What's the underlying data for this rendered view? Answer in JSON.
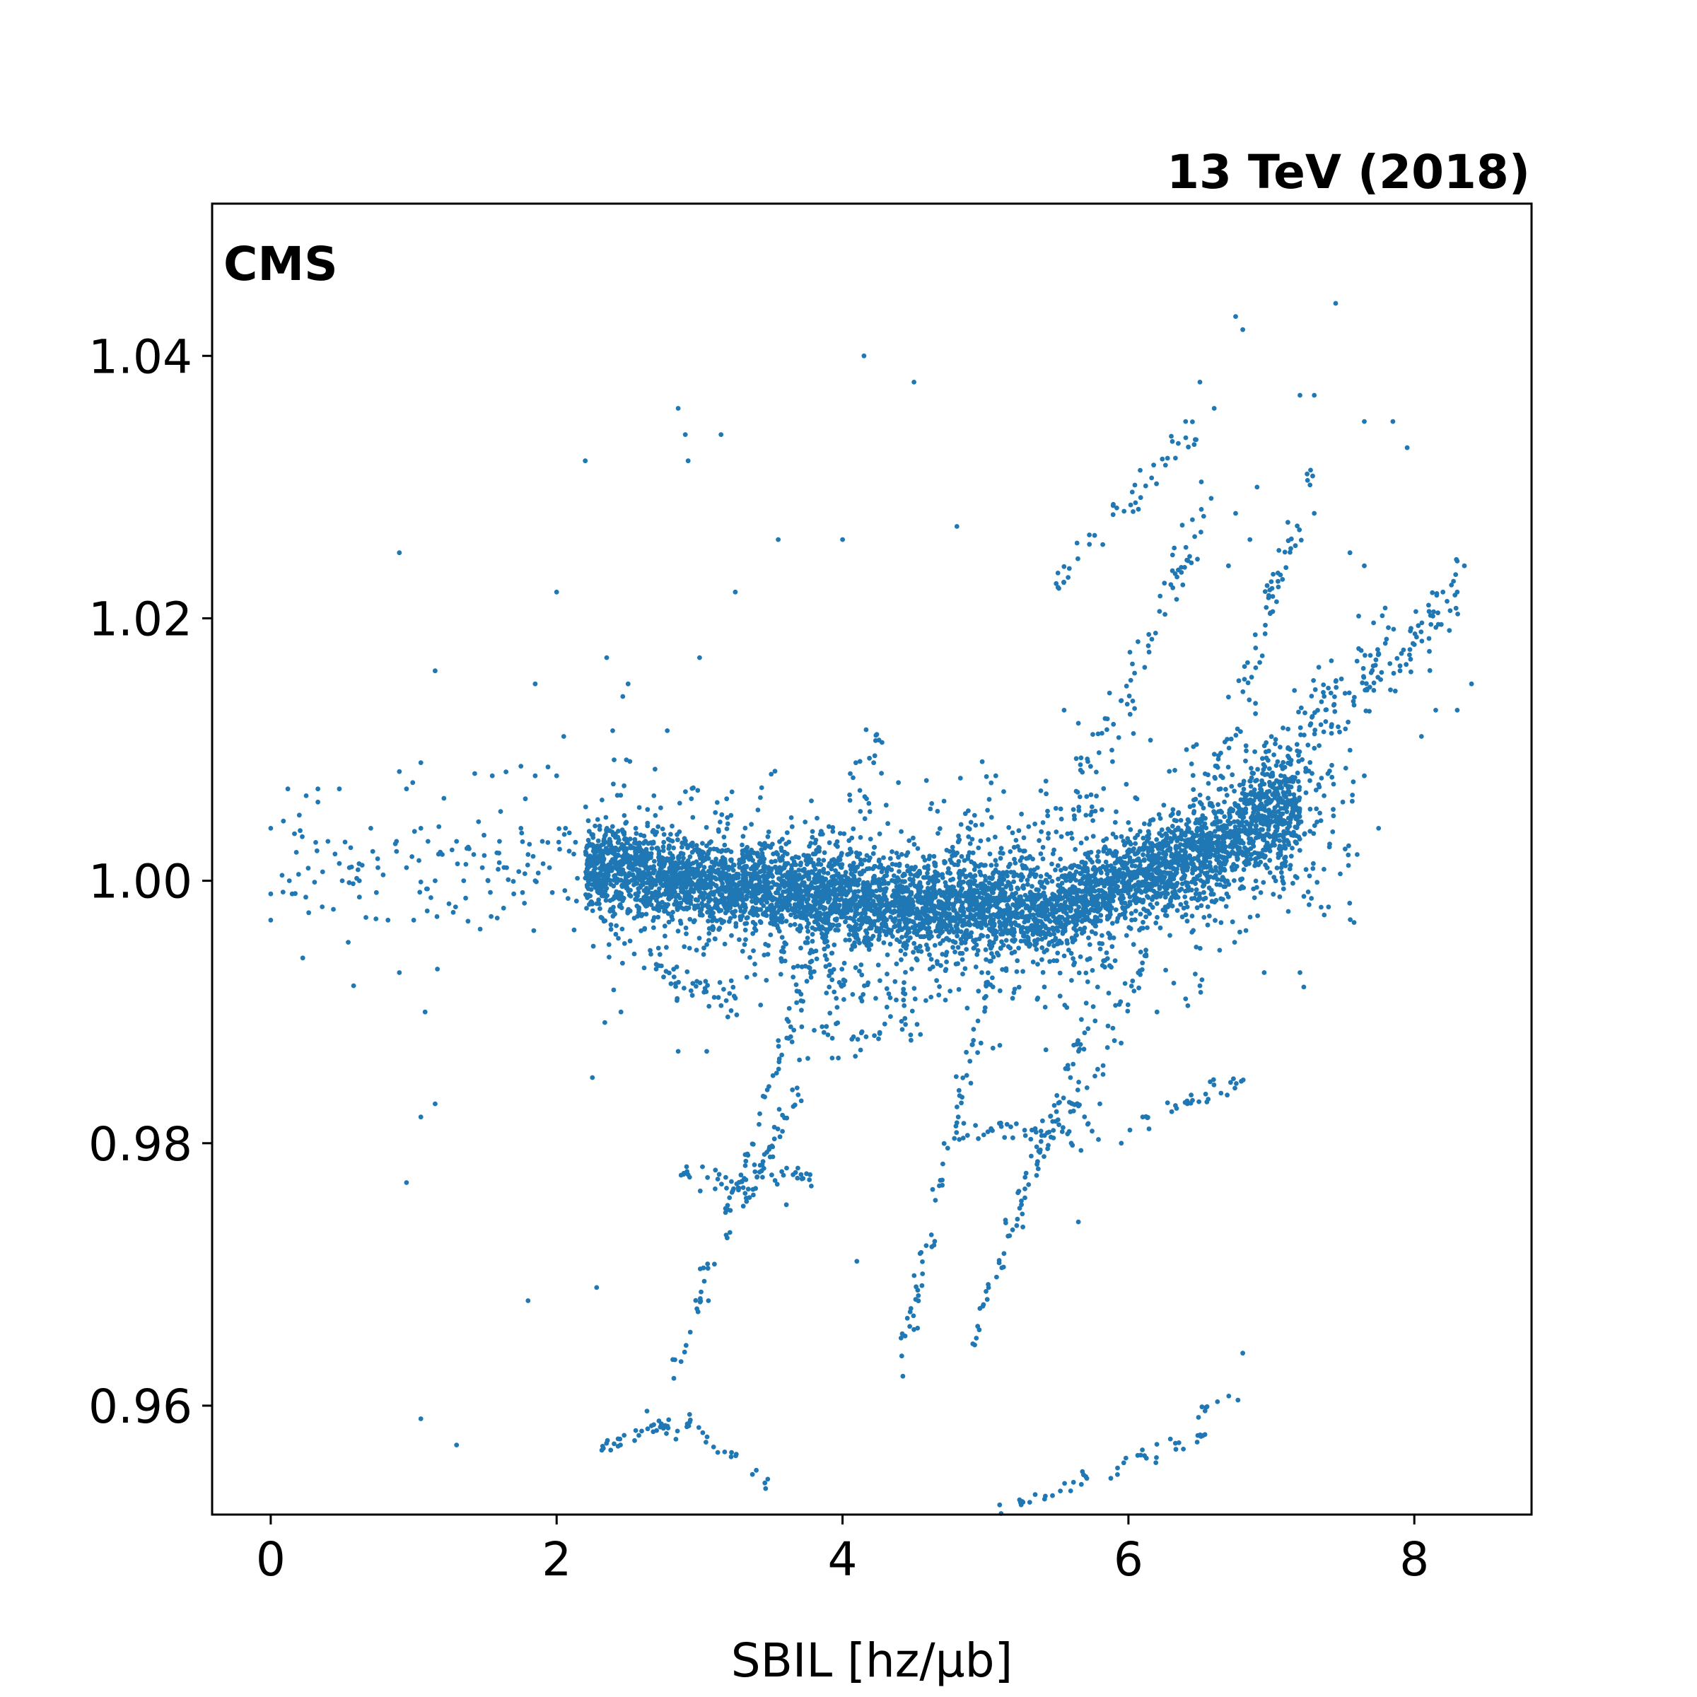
{
  "chart_data": {
    "type": "scatter",
    "title": "13 TeV (2018)",
    "corner_label": "CMS",
    "xlabel": "SBIL [hz/μb]",
    "ylabel": "",
    "xlim": [
      -0.41,
      8.82
    ],
    "ylim": [
      0.9517,
      1.0516
    ],
    "x_ticks": [
      {
        "value": 0,
        "label": "0"
      },
      {
        "value": 2,
        "label": "2"
      },
      {
        "value": 4,
        "label": "4"
      },
      {
        "value": 6,
        "label": "6"
      },
      {
        "value": 8,
        "label": "8"
      }
    ],
    "y_ticks": [
      {
        "value": 0.96,
        "label": "0.96"
      },
      {
        "value": 0.98,
        "label": "0.98"
      },
      {
        "value": 1.0,
        "label": "1.00"
      },
      {
        "value": 1.02,
        "label": "1.02"
      },
      {
        "value": 1.04,
        "label": "1.04"
      }
    ],
    "grid": false,
    "marker_color": "#1f77b4",
    "band": {
      "x_range": [
        2.2,
        7.2
      ],
      "center_at_x": [
        [
          2.2,
          1.001
        ],
        [
          3.0,
          1.0
        ],
        [
          4.3,
          0.998
        ],
        [
          5.5,
          0.998
        ],
        [
          6.5,
          1.002
        ],
        [
          7.0,
          1.005
        ]
      ],
      "scatter_sd": 0.0017
    },
    "series": [
      {
        "values": [
          [
            0.0,
            1.004
          ],
          [
            0.0,
            0.999
          ],
          [
            0.0,
            0.997
          ],
          [
            0.12,
            1.007
          ],
          [
            0.13,
            1.0
          ],
          [
            0.15,
            0.999
          ],
          [
            0.2,
            1.005
          ],
          [
            0.33,
            1.007
          ],
          [
            0.33,
            1.006
          ],
          [
            0.4,
            1.003
          ],
          [
            0.48,
            1.007
          ],
          [
            0.5,
            1.0
          ],
          [
            0.55,
            1.001
          ],
          [
            0.58,
            0.992
          ],
          [
            0.62,
            1.0
          ],
          [
            0.7,
            1.004
          ],
          [
            0.75,
            1.001
          ],
          [
            0.82,
            0.997
          ],
          [
            0.88,
            1.003
          ],
          [
            0.9,
            0.993
          ],
          [
            0.95,
            1.001
          ],
          [
            1.0,
            0.997
          ],
          [
            1.05,
            1.004
          ],
          [
            1.08,
            0.99
          ],
          [
            1.1,
            1.003
          ],
          [
            1.15,
            1.0
          ],
          [
            1.2,
            1.002
          ],
          [
            1.3,
            1.003
          ],
          [
            1.35,
            1.0
          ],
          [
            1.42,
            1.002
          ],
          [
            1.48,
            1.001
          ],
          [
            1.52,
            1.0
          ],
          [
            1.6,
            1.003
          ],
          [
            1.65,
            1.001
          ],
          [
            1.7,
            0.999
          ],
          [
            1.75,
            1.004
          ],
          [
            1.8,
            1.002
          ],
          [
            1.85,
            1.0
          ],
          [
            1.9,
            1.003
          ],
          [
            1.95,
            1.001
          ],
          [
            1.05,
            1.009
          ],
          [
            0.95,
            1.007
          ],
          [
            1.55,
            1.008
          ],
          [
            1.85,
            1.008
          ],
          [
            2.0,
            1.008
          ],
          [
            2.05,
            1.011
          ],
          [
            0.9,
            1.025
          ],
          [
            1.15,
            1.016
          ],
          [
            1.85,
            1.015
          ],
          [
            2.0,
            1.022
          ],
          [
            2.2,
            1.032
          ],
          [
            2.35,
            1.017
          ],
          [
            2.5,
            1.015
          ],
          [
            2.85,
            1.036
          ],
          [
            2.9,
            1.034
          ],
          [
            2.92,
            1.032
          ],
          [
            3.0,
            1.017
          ],
          [
            3.15,
            1.034
          ],
          [
            3.25,
            1.022
          ],
          [
            3.55,
            1.026
          ],
          [
            4.0,
            1.026
          ],
          [
            4.15,
            1.04
          ],
          [
            4.5,
            1.038
          ],
          [
            4.8,
            1.027
          ],
          [
            6.75,
            1.043
          ],
          [
            6.8,
            1.042
          ],
          [
            7.45,
            1.044
          ],
          [
            7.2,
            1.037
          ],
          [
            7.3,
            1.037
          ],
          [
            7.65,
            1.035
          ],
          [
            7.85,
            1.035
          ],
          [
            7.95,
            1.033
          ],
          [
            6.5,
            1.038
          ],
          [
            6.6,
            1.036
          ],
          [
            6.4,
            1.035
          ],
          [
            1.05,
            0.982
          ],
          [
            1.15,
            0.983
          ],
          [
            0.95,
            0.977
          ],
          [
            1.05,
            0.959
          ],
          [
            1.3,
            0.957
          ],
          [
            1.8,
            0.968
          ],
          [
            2.25,
            0.985
          ],
          [
            2.28,
            0.969
          ],
          [
            2.45,
            0.99
          ],
          [
            2.85,
            0.987
          ],
          [
            3.05,
            0.987
          ],
          [
            4.1,
            0.971
          ],
          [
            5.65,
            0.974
          ],
          [
            6.8,
            0.964
          ],
          [
            5.55,
            1.013
          ],
          [
            5.65,
            1.012
          ],
          [
            6.75,
            1.028
          ],
          [
            6.85,
            1.026
          ],
          [
            6.7,
            1.024
          ],
          [
            6.9,
            1.03
          ],
          [
            7.25,
            1.031
          ],
          [
            7.3,
            1.028
          ],
          [
            7.55,
            1.025
          ],
          [
            7.65,
            1.024
          ],
          [
            7.9,
            1.016
          ],
          [
            8.0,
            1.018
          ],
          [
            8.1,
            1.021
          ],
          [
            8.2,
            1.022
          ],
          [
            8.3,
            1.022
          ],
          [
            8.35,
            1.024
          ],
          [
            8.4,
            1.015
          ],
          [
            8.3,
            1.013
          ],
          [
            8.15,
            1.013
          ],
          [
            8.05,
            1.011
          ],
          [
            7.75,
            1.004
          ],
          [
            7.6,
            1.002
          ],
          [
            7.65,
            1.008
          ],
          [
            7.5,
            1.006
          ],
          [
            7.2,
            0.993
          ],
          [
            7.4,
            0.998
          ],
          [
            6.95,
            0.993
          ],
          [
            6.2,
            0.99
          ],
          [
            6.4,
            0.991
          ],
          [
            6.5,
            0.992
          ],
          [
            5.6,
            0.98
          ],
          [
            5.8,
            0.983
          ],
          [
            5.95,
            0.98
          ],
          [
            6.1,
            0.982
          ]
        ]
      }
    ]
  }
}
